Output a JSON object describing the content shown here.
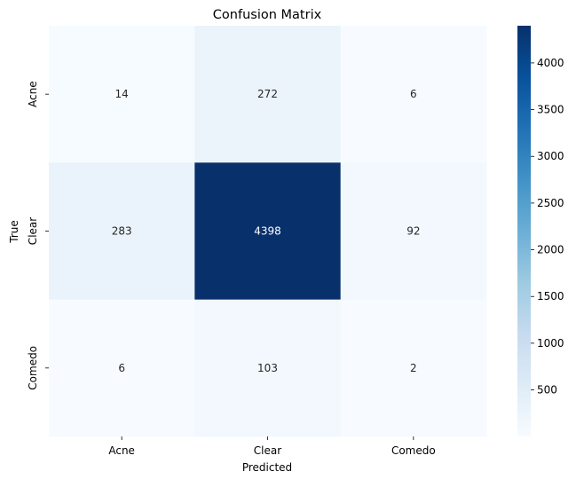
{
  "chart_data": {
    "type": "heatmap",
    "title": "Confusion Matrix",
    "xlabel": "Predicted",
    "ylabel": "True",
    "x_categories": [
      "Acne",
      "Clear",
      "Comedo"
    ],
    "y_categories": [
      "Acne",
      "Clear",
      "Comedo"
    ],
    "values": [
      [
        14,
        272,
        6
      ],
      [
        283,
        4398,
        92
      ],
      [
        6,
        103,
        2
      ]
    ],
    "colormap": "Blues",
    "colorbar": {
      "min": 2,
      "max": 4398,
      "ticks": [
        500,
        1000,
        1500,
        2000,
        2500,
        3000,
        3500,
        4000
      ]
    },
    "colors": {
      "low": "#f7fbff",
      "high": "#08306b",
      "annotation_light": "#ffffff",
      "annotation_dark": "#262626"
    }
  }
}
